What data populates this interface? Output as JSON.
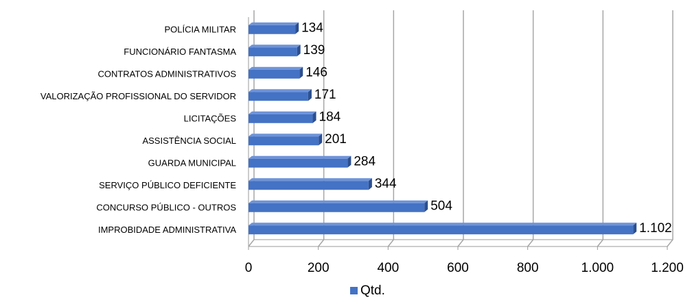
{
  "chart_data": {
    "type": "bar",
    "orientation": "horizontal",
    "categories": [
      "POLÍCIA MILITAR",
      "FUNCIONÁRIO FANTASMA",
      "CONTRATOS ADMINISTRATIVOS",
      "VALORIZAÇÃO PROFISSIONAL DO SERVIDOR",
      "LICITAÇÕES",
      "ASSISTÊNCIA SOCIAL",
      "GUARDA MUNICIPAL",
      "SERVIÇO PÚBLICO DEFICIENTE",
      "CONCURSO PÚBLICO - OUTROS",
      "IMPROBIDADE ADMINISTRATIVA"
    ],
    "series": [
      {
        "name": "Qtd.",
        "color": "#4472c4",
        "values": [
          134,
          139,
          146,
          171,
          184,
          201,
          284,
          344,
          504,
          1102
        ],
        "value_labels": [
          "134",
          "139",
          "146",
          "171",
          "184",
          "201",
          "284",
          "344",
          "504",
          "1.102"
        ]
      }
    ],
    "xlim": [
      0,
      1200
    ],
    "xticks": [
      0,
      200,
      400,
      600,
      800,
      {
        "value": 1000,
        "label": "1.000"
      },
      {
        "value": 1200,
        "label": "1.200"
      }
    ],
    "grid": true,
    "legend": "bottom"
  }
}
